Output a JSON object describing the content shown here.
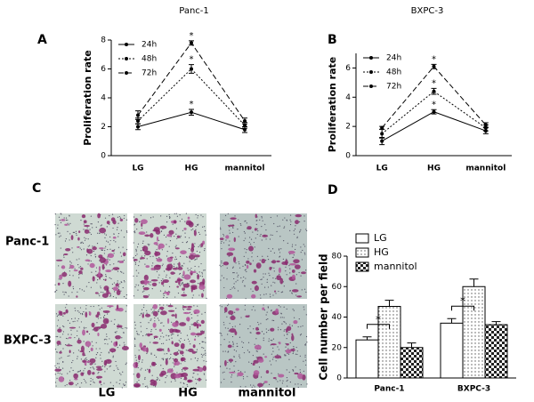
{
  "panel_labels": [
    "A",
    "B",
    "C",
    "D"
  ],
  "micrographs": {
    "rows": [
      "Panc-1",
      "BXPC-3"
    ],
    "columns": [
      "LG",
      "HG",
      "mannitol"
    ]
  },
  "chart_data": [
    {
      "type": "line",
      "title": "Panc-1",
      "y_label": "Proliferation rate",
      "categories": [
        "LG",
        "HG",
        "mannitol"
      ],
      "ylim": [
        0,
        8
      ],
      "yticks": [
        0,
        2,
        4,
        6,
        8
      ],
      "legend": "upper left",
      "series": [
        {
          "name": "24h",
          "color": "#000000",
          "dash": "solid",
          "values": [
            2.0,
            3.0,
            1.8
          ],
          "errors": [
            0.2,
            0.2,
            0.2
          ],
          "significance": [
            null,
            "*",
            null
          ]
        },
        {
          "name": "48h",
          "color": "#000000",
          "dash": "dotted",
          "values": [
            2.4,
            6.0,
            2.1
          ],
          "errors": [
            0.2,
            0.3,
            0.2
          ],
          "significance": [
            null,
            "*",
            null
          ]
        },
        {
          "name": "72h",
          "color": "#000000",
          "dash": "dashed",
          "values": [
            2.8,
            7.8,
            2.4
          ],
          "errors": [
            0.3,
            0.15,
            0.2
          ],
          "significance": [
            null,
            "*",
            null
          ]
        }
      ]
    },
    {
      "type": "line",
      "title": "BXPC-3",
      "y_label": "Proliferation rate",
      "categories": [
        "LG",
        "HG",
        "mannitol"
      ],
      "ylim": [
        0,
        7
      ],
      "yticks": [
        0,
        2,
        4,
        6
      ],
      "legend": "upper left",
      "series": [
        {
          "name": "24h",
          "color": "#000000",
          "dash": "solid",
          "values": [
            1.0,
            3.0,
            1.7
          ],
          "errors": [
            0.25,
            0.15,
            0.2
          ],
          "significance": [
            null,
            "*",
            null
          ]
        },
        {
          "name": "48h",
          "color": "#000000",
          "dash": "dotted",
          "values": [
            1.5,
            4.4,
            1.9
          ],
          "errors": [
            0.3,
            0.2,
            0.2
          ],
          "significance": [
            null,
            "*",
            null
          ]
        },
        {
          "name": "72h",
          "color": "#000000",
          "dash": "dashed",
          "values": [
            1.9,
            6.1,
            2.1
          ],
          "errors": [
            0.1,
            0.15,
            0.15
          ],
          "significance": [
            null,
            "*",
            null
          ]
        }
      ]
    },
    {
      "type": "bar",
      "y_label": "Cell number per field",
      "categories": [
        "Panc-1",
        "BXPC-3"
      ],
      "ylim": [
        0,
        80
      ],
      "yticks": [
        0,
        20,
        40,
        60,
        80
      ],
      "legend": "upper left",
      "significance": [
        "*",
        "*"
      ],
      "series": [
        {
          "name": "LG",
          "color": "#000000",
          "pattern": "none",
          "values": [
            25,
            36
          ],
          "errors": [
            2,
            3
          ]
        },
        {
          "name": "HG",
          "color": "#000000",
          "pattern": "dots",
          "values": [
            47,
            60
          ],
          "errors": [
            4,
            5
          ]
        },
        {
          "name": "mannitol",
          "color": "#000000",
          "pattern": "checker",
          "values": [
            20,
            35
          ],
          "errors": [
            3,
            2
          ]
        }
      ]
    }
  ]
}
